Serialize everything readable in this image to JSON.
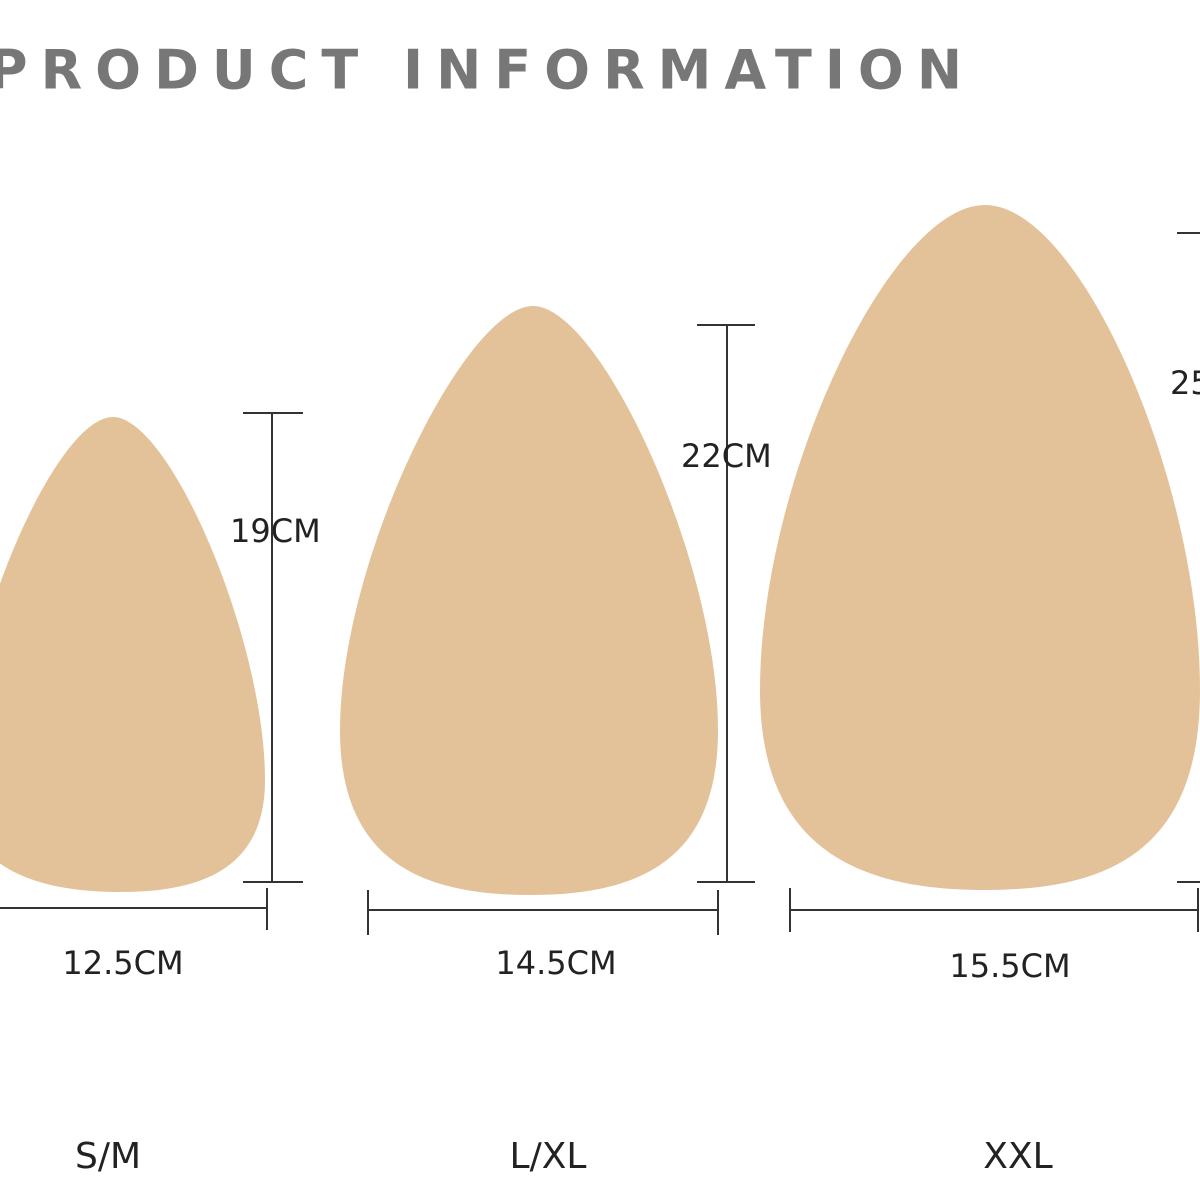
{
  "title": "PRODUCT INFORMATION",
  "products": [
    {
      "size": "S/M",
      "width": "12.5CM",
      "height": "19CM"
    },
    {
      "size": "L/XL",
      "width": "14.5CM",
      "height": "22CM"
    },
    {
      "size": "XXL",
      "width": "15.5CM",
      "height": "25"
    }
  ]
}
